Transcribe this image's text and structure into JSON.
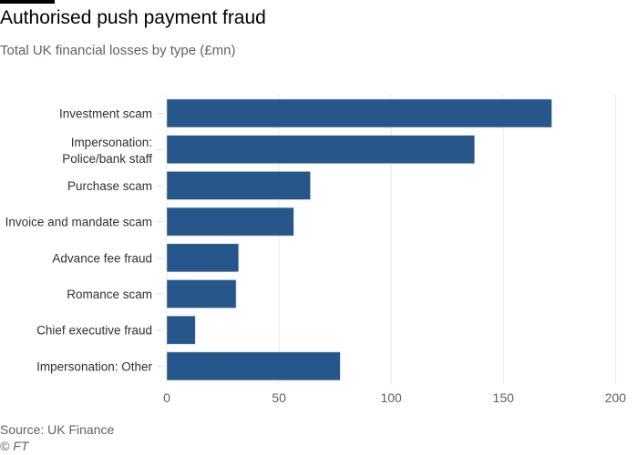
{
  "chart_data": {
    "type": "bar",
    "orientation": "horizontal",
    "title": "Authorised push payment fraud",
    "subtitle": "Total UK financial losses by type (£mn)",
    "categories": [
      [
        "Investment scam"
      ],
      [
        "Impersonation:",
        "Police/bank staff"
      ],
      [
        "Purchase scam"
      ],
      [
        "Invoice and mandate scam"
      ],
      [
        "Advance fee fraud"
      ],
      [
        "Romance scam"
      ],
      [
        "Chief executive fraud"
      ],
      [
        "Impersonation: Other"
      ]
    ],
    "values": [
      171.6,
      137.2,
      64.0,
      56.6,
      32.0,
      30.9,
      12.7,
      77.3
    ],
    "xlim": [
      0,
      200
    ],
    "xticks": [
      "0",
      "50",
      "100",
      "150",
      "200"
    ],
    "xtick_values": [
      0,
      50,
      100,
      150,
      200
    ],
    "grid": true,
    "bar_color": "#27568b",
    "xlabel": "",
    "ylabel": ""
  },
  "source": "Source: UK Finance",
  "copyright": "© FT"
}
